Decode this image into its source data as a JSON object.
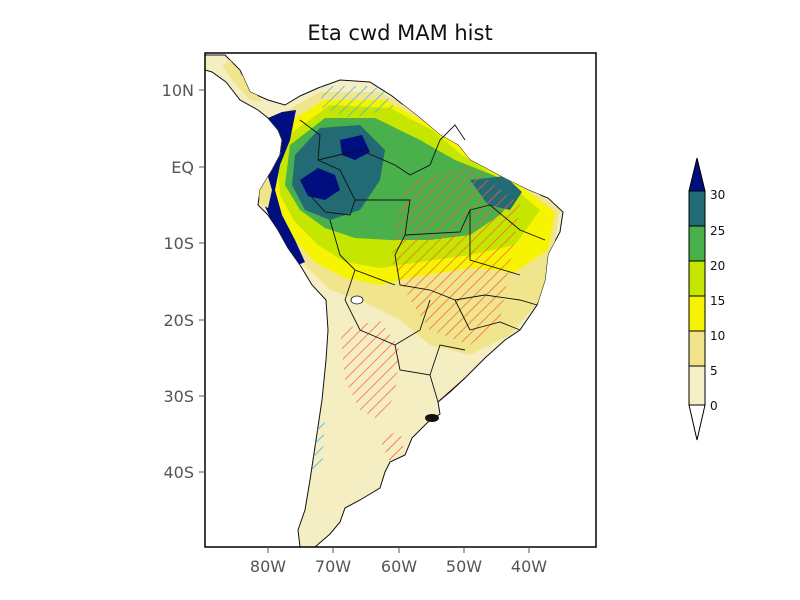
{
  "title": "Eta  cwd MAM hist",
  "lat_labels": [
    "10N",
    "EQ",
    "10S",
    "20S",
    "30S",
    "40S"
  ],
  "lon_labels": [
    "80W",
    "70W",
    "60W",
    "50W",
    "40W"
  ],
  "colorbar": {
    "labels": [
      "0",
      "5",
      "10",
      "15",
      "20",
      "25",
      "30"
    ],
    "colors": [
      "#f7efc4",
      "#f0e38a",
      "#f6f400",
      "#c4e600",
      "#49b04b",
      "#226a74",
      "#000e80"
    ]
  },
  "map_colors": {
    "ocean": "#ffffff",
    "land_base": "#f5eec2",
    "c5_10": "#f0e48c",
    "c10_15": "#f6f400",
    "c15_20": "#c4e600",
    "c20_25": "#49b04b",
    "c25_30": "#226a74",
    "c30": "#000e80",
    "hatch_red": "#ff5a3c",
    "hatch_blue": "#3cb4f0",
    "border": "#111111"
  }
}
